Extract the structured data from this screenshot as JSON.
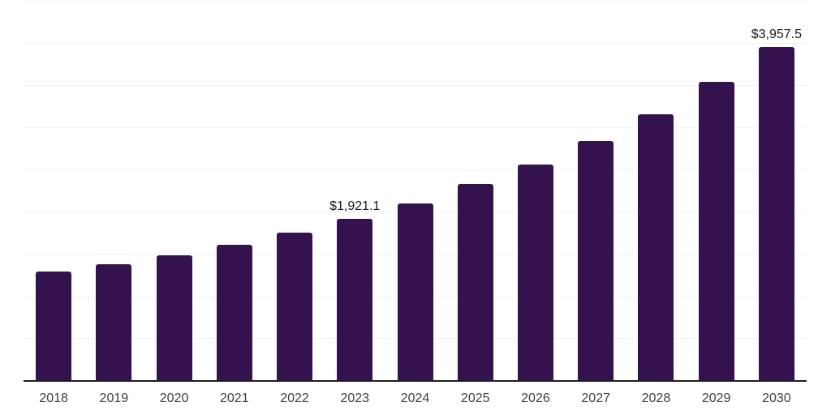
{
  "chart_data": {
    "type": "bar",
    "title": "",
    "xlabel": "",
    "ylabel": "",
    "categories": [
      "2018",
      "2019",
      "2020",
      "2021",
      "2022",
      "2023",
      "2024",
      "2025",
      "2026",
      "2027",
      "2028",
      "2029",
      "2030"
    ],
    "values": [
      1298,
      1385,
      1490,
      1615,
      1760,
      1921.1,
      2110,
      2335,
      2570,
      2845,
      3165,
      3545,
      3957.5
    ],
    "value_labels": [
      "",
      "",
      "",
      "",
      "",
      "$1,921.1",
      "",
      "",
      "",
      "",
      "",
      "",
      "$3,957.5"
    ],
    "ylim": [
      0,
      4500
    ],
    "gridline_step": 500,
    "grid": true,
    "legend": "none",
    "y_axis_labels_visible": false
  },
  "colors": {
    "bar": "#33124D",
    "gridline": "#F2F2F2",
    "axis": "#1F1F1F",
    "tick_text": "#404040",
    "label_text": "#1A1A1A",
    "background": "#FFFFFF"
  }
}
